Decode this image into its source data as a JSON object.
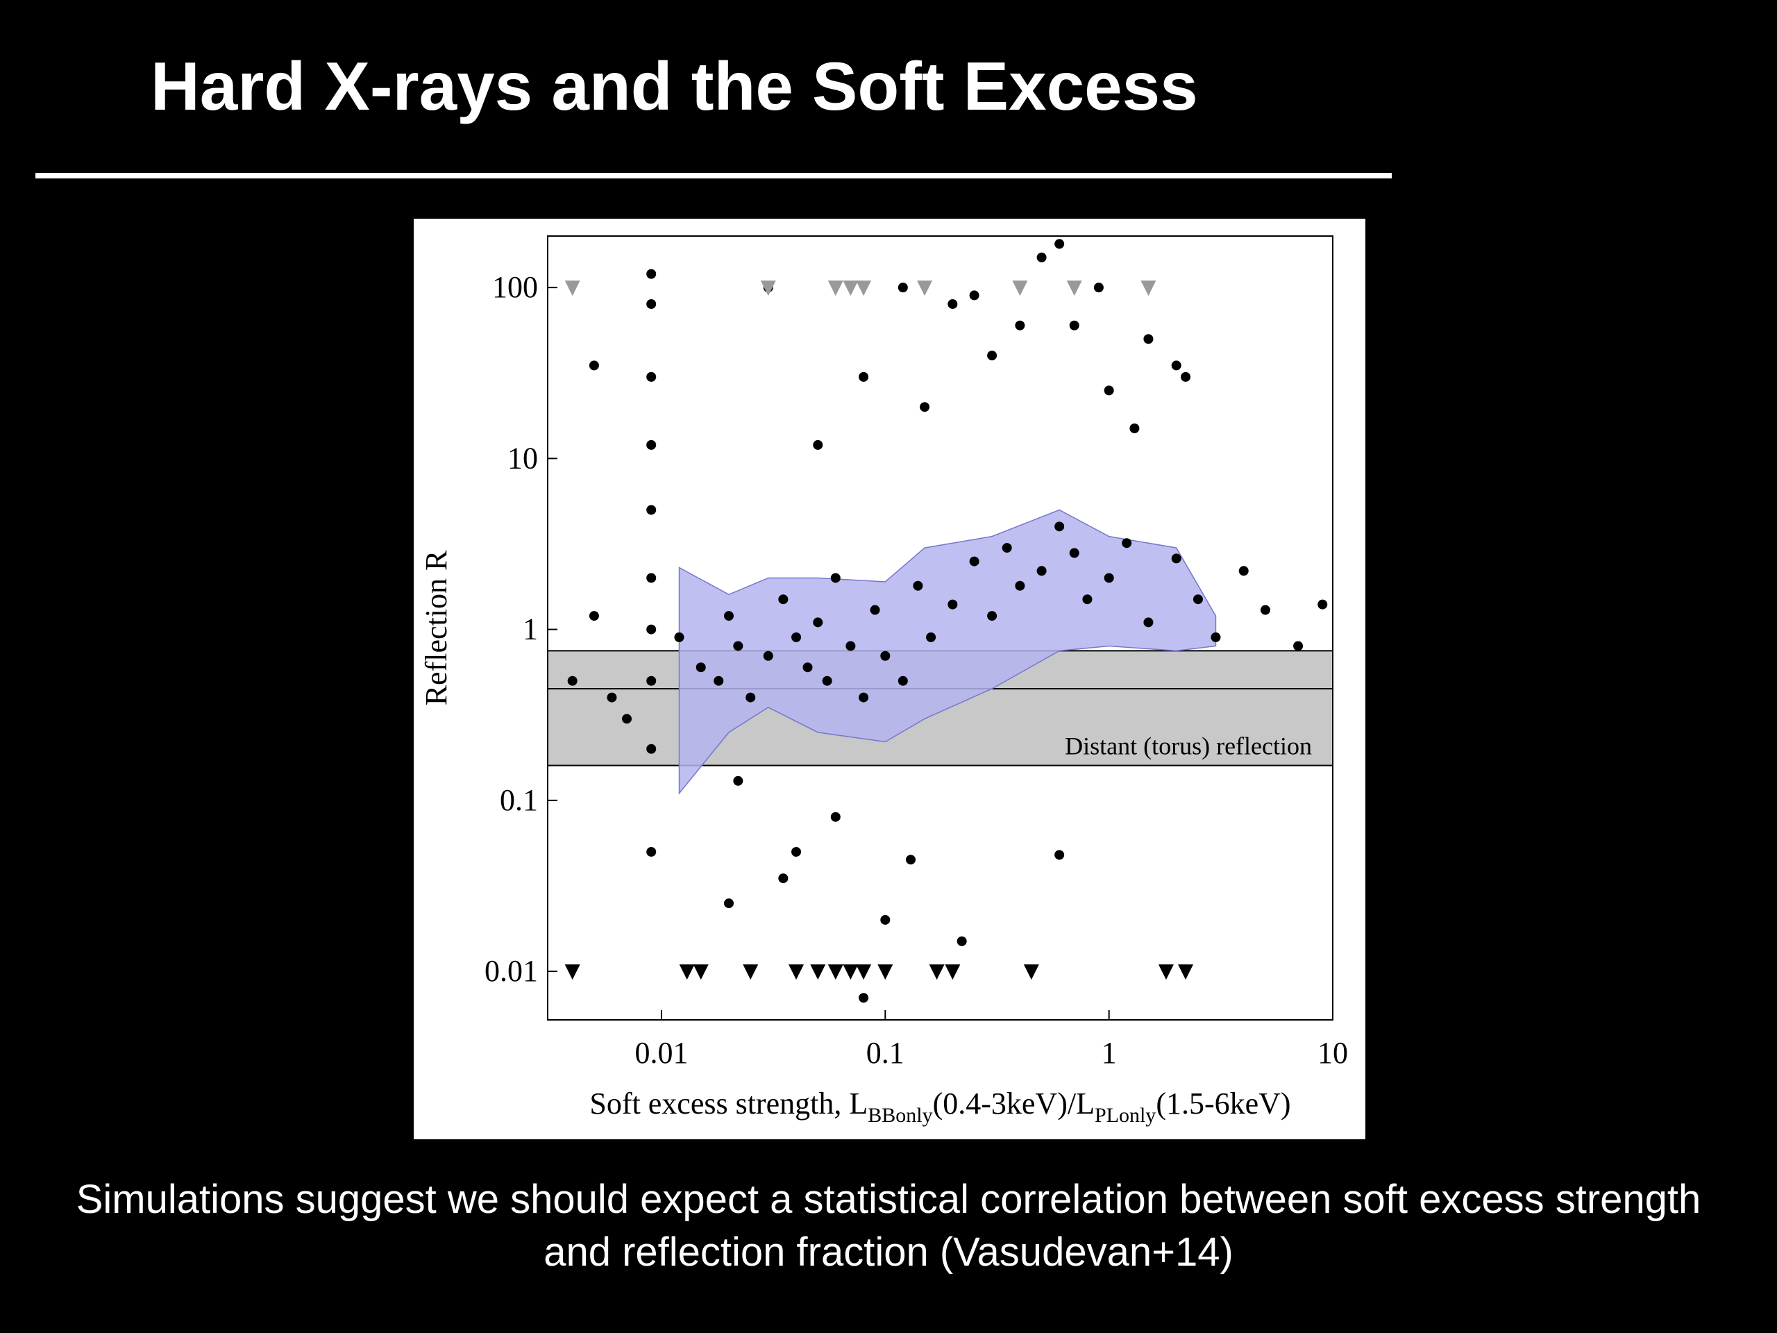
{
  "header": {
    "title": "Hard X-rays and the Soft Excess"
  },
  "caption": "Simulations suggest we should expect a statistical correlation between soft excess strength and reflection fraction (Vasudevan+14)",
  "chart_data": {
    "type": "scatter",
    "log_x": true,
    "log_y": true,
    "ylabel": "Reflection R",
    "xlabel": {
      "parts": [
        "Soft excess strength, L",
        "BBonly",
        "(0.4-3keV)/L",
        "PLonly",
        "(1.5-6keV)"
      ]
    },
    "xlim": [
      0.0031,
      10
    ],
    "ylim": [
      0.0052,
      200
    ],
    "xticks": [
      0.01,
      0.1,
      1,
      10
    ],
    "yticks": [
      0.01,
      0.1,
      1,
      10,
      100
    ],
    "band": {
      "range": [
        0.16,
        0.75
      ],
      "line": 0.45,
      "label": "Distant (torus) reflection",
      "color": "#c8c8c8"
    },
    "area": {
      "color": "#b4b4f0",
      "x": [
        0.012,
        0.02,
        0.03,
        0.05,
        0.1,
        0.15,
        0.3,
        0.6,
        1,
        2,
        3
      ],
      "lower": [
        0.11,
        0.25,
        0.35,
        0.25,
        0.22,
        0.3,
        0.45,
        0.75,
        0.8,
        0.75,
        0.8
      ],
      "upper": [
        2.3,
        1.6,
        2,
        2,
        1.9,
        3,
        3.5,
        5,
        3.5,
        3,
        1.2
      ]
    },
    "series": [
      {
        "color": "#000000",
        "marker": "dot",
        "x": [
          0.004,
          0.005,
          0.006,
          0.007,
          0.009,
          0.009,
          0.009,
          0.009,
          0.009,
          0.009,
          0.009,
          0.009,
          0.009,
          0.009,
          0.012,
          0.015,
          0.018,
          0.02,
          0.022,
          0.025,
          0.03,
          0.035,
          0.04,
          0.045,
          0.05,
          0.055,
          0.06,
          0.07,
          0.08,
          0.09,
          0.1,
          0.12,
          0.14,
          0.16,
          0.2,
          0.25,
          0.3,
          0.35,
          0.4,
          0.5,
          0.6,
          0.7,
          0.8,
          1,
          1.2,
          1.5,
          2,
          2.5,
          3,
          4,
          5,
          7,
          9,
          0.03,
          0.05,
          0.08,
          0.12,
          0.2,
          0.3,
          0.5,
          0.7,
          1,
          1.5,
          2,
          0.15,
          0.25,
          0.4,
          0.6,
          0.9,
          1.3,
          2.2,
          0.005,
          0.02,
          0.04,
          0.06,
          0.1,
          0.022,
          0.035,
          0.13,
          0.6,
          0.22,
          0.08
        ],
        "values": [
          0.5,
          1.2,
          0.4,
          0.3,
          120,
          80,
          30,
          12,
          5,
          2,
          1,
          0.5,
          0.2,
          0.05,
          0.9,
          0.6,
          0.5,
          1.2,
          0.8,
          0.4,
          0.7,
          1.5,
          0.9,
          0.6,
          1.1,
          0.5,
          2,
          0.8,
          0.4,
          1.3,
          0.7,
          0.5,
          1.8,
          0.9,
          1.4,
          2.5,
          1.2,
          3,
          1.8,
          2.2,
          4,
          2.8,
          1.5,
          2,
          3.2,
          1.1,
          2.6,
          1.5,
          0.9,
          2.2,
          1.3,
          0.8,
          1.4,
          100,
          12,
          30,
          100,
          80,
          40,
          150,
          60,
          25,
          50,
          35,
          20,
          90,
          60,
          180,
          100,
          15,
          30,
          35,
          0.025,
          0.05,
          0.08,
          0.02,
          0.13,
          0.035,
          0.045,
          0.048,
          0.015,
          0.007
        ]
      },
      {
        "color": "#000000",
        "marker": "down-arrow",
        "x": [
          0.004,
          0.013,
          0.015,
          0.025,
          0.04,
          0.05,
          0.06,
          0.07,
          0.08,
          0.1,
          0.17,
          0.2,
          0.45,
          1.8,
          2.2
        ],
        "values": [
          0.01,
          0.01,
          0.01,
          0.01,
          0.01,
          0.01,
          0.01,
          0.01,
          0.01,
          0.01,
          0.01,
          0.01,
          0.01,
          0.01,
          0.01
        ]
      },
      {
        "color": "#999999",
        "marker": "down-arrow",
        "x": [
          0.004,
          0.03,
          0.06,
          0.07,
          0.08,
          0.15,
          0.4,
          0.7,
          1.5
        ],
        "values": [
          100,
          100,
          100,
          100,
          100,
          100,
          100,
          100,
          100
        ]
      }
    ]
  }
}
